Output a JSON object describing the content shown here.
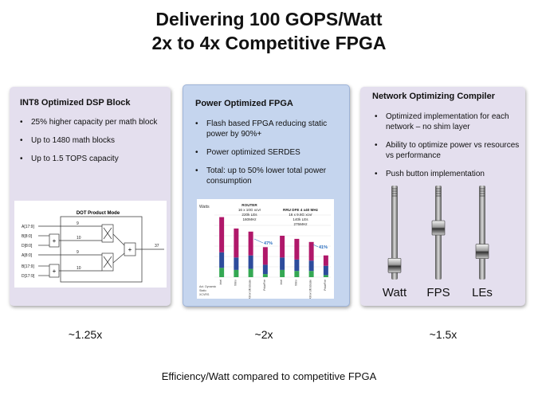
{
  "slide": {
    "title_line1": "Delivering 100 GOPS/Watt",
    "title_line2": "2x to 4x Competitive FPGA",
    "footer": "Efficiency/Watt compared to competitive FPGA"
  },
  "panels": [
    {
      "heading": "INT8 Optimized DSP Block",
      "bullets": [
        "25% higher capacity per math block",
        "Up to 1480 math blocks",
        "Up to 1.5 TOPS capacity"
      ],
      "multiplier": "~1.25x",
      "diagram": {
        "title": "DOT Product Mode",
        "inputs": [
          "A[17:9]",
          "B[8:0]",
          "D[8:0]",
          "A[8:0]",
          "B[17:9]",
          "D[17:9]"
        ],
        "bus_widths": [
          "9",
          "10",
          "9",
          "10",
          "37"
        ]
      }
    },
    {
      "heading": "Power Optimized FPGA",
      "bullets": [
        "Flash based FPGA  reducing static power by 90%+",
        "Power optimized SERDES",
        "Total:  up to 50% lower total power consumption"
      ],
      "multiplier": "~2x",
      "chart": {
        "ylabel": "Watts",
        "groups": [
          {
            "label": "ROUTER",
            "lines": [
              "16 x 10G xcvr",
              "220k LEs",
              "160MHz"
            ]
          },
          {
            "label": "RRU DFE 4 x40 MHz",
            "lines": [
              "16 x 9.8G xcvr",
              "140k LEs",
              "275MHz"
            ]
          }
        ],
        "annotations": [
          "47%",
          "41%"
        ],
        "legend": [
          "Act. Dynamic",
          "Static",
          "XCVRS"
        ]
      }
    },
    {
      "heading": "Network Optimizing Compiler",
      "bullets": [
        "Optimized  implementation  for each network – no shim layer",
        "Ability to optimize power vs resources vs performance",
        "Push button implementation"
      ],
      "multiplier": "~1.5x",
      "sliders": [
        "Watt",
        "FPS",
        "LEs"
      ],
      "slider_levels": [
        0.15,
        0.55,
        0.3
      ]
    }
  ],
  "colors": {
    "panel_purple": "#e4dfee",
    "panel_blue": "#c5d5ee",
    "bar_magenta": "#b0186a",
    "bar_blue": "#2d4c9c",
    "bar_green": "#34a853"
  },
  "chart_data": {
    "type": "bar",
    "stacked": true,
    "ylabel": "Watts",
    "categories": [
      "Intel",
      "Xilinx",
      "Xilinx UltraScale",
      "PolarFire",
      "Intel",
      "Xilinx",
      "Xilinx UltraScale",
      "PolarFire"
    ],
    "series": [
      {
        "name": "XCVRS",
        "values": [
          0.9,
          0.7,
          0.8,
          0.3,
          0.7,
          0.6,
          0.6,
          0.2
        ]
      },
      {
        "name": "Static",
        "values": [
          1.5,
          1.2,
          1.3,
          0.9,
          1.2,
          1.1,
          1.0,
          0.9
        ]
      },
      {
        "name": "Act. Dynamic",
        "values": [
          3.4,
          2.8,
          2.3,
          1.7,
          2.1,
          2.0,
          1.8,
          1.0
        ]
      }
    ],
    "ylim": [
      0,
      6
    ],
    "legend": "bottom-left"
  }
}
